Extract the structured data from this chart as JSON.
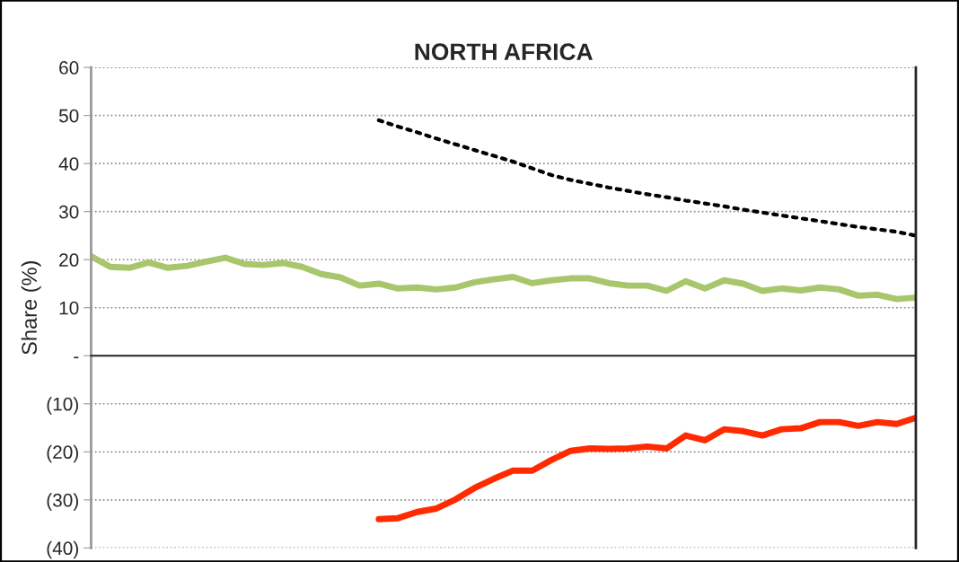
{
  "chart_data": {
    "type": "line",
    "title": "NORTH AFRICA",
    "ylabel": "Share (%)",
    "categories": [
      null,
      null,
      null,
      null,
      null,
      null,
      null,
      null,
      null,
      null,
      null,
      null,
      null,
      null,
      null,
      null,
      null,
      null,
      null,
      null,
      null,
      null,
      null,
      null,
      null,
      null,
      null,
      null,
      null,
      null,
      null,
      null,
      null,
      null,
      null,
      null,
      null,
      null,
      null,
      null,
      null,
      null,
      null,
      null
    ],
    "series": [
      {
        "color": "#a8c66c",
        "line_style": "solid",
        "values": [
          20.7,
          18.5,
          18.3,
          19.4,
          18.3,
          18.7,
          19.6,
          20.4,
          19.1,
          18.9,
          19.3,
          18.5,
          17.0,
          16.3,
          14.6,
          15.0,
          14.0,
          14.2,
          13.8,
          14.2,
          15.3,
          15.9,
          16.4,
          15.1,
          15.7,
          16.1,
          16.1,
          15.1,
          14.6,
          14.6,
          13.5,
          15.5,
          14.0,
          15.7,
          15.0,
          13.5,
          14.0,
          13.6,
          14.2,
          13.8,
          12.5,
          12.7,
          11.8,
          12.1
        ]
      },
      {
        "color": "#000000",
        "line_style": "dotted",
        "values": [
          null,
          null,
          null,
          null,
          null,
          null,
          null,
          null,
          null,
          null,
          null,
          null,
          null,
          null,
          null,
          49.0,
          47.7,
          46.5,
          45.2,
          44.0,
          42.8,
          41.6,
          40.4,
          39.0,
          37.6,
          36.6,
          35.8,
          35.0,
          34.3,
          33.6,
          33.0,
          32.3,
          31.7,
          31.1,
          30.4,
          29.8,
          29.2,
          28.6,
          28.0,
          27.4,
          26.8,
          26.3,
          25.8,
          25.0
        ]
      },
      {
        "color": "#ff2a00",
        "line_style": "solid",
        "values": [
          null,
          null,
          null,
          null,
          null,
          null,
          null,
          null,
          null,
          null,
          null,
          null,
          null,
          null,
          null,
          -34.0,
          -33.8,
          -32.5,
          -31.8,
          -29.9,
          -27.5,
          -25.6,
          -23.9,
          -23.9,
          -21.7,
          -19.8,
          -19.3,
          -19.4,
          -19.3,
          -18.9,
          -19.3,
          -16.6,
          -17.6,
          -15.3,
          -15.7,
          -16.6,
          -15.3,
          -15.1,
          -13.8,
          -13.8,
          -14.6,
          -13.8,
          -14.2,
          -12.9
        ]
      }
    ],
    "ylim": [
      -40,
      60
    ],
    "yticks": [
      {
        "value": -40,
        "label": "(40)"
      },
      {
        "value": -30,
        "label": "(30)"
      },
      {
        "value": -20,
        "label": "(20)"
      },
      {
        "value": -10,
        "label": "(10)"
      },
      {
        "value": 0,
        "label": "-"
      },
      10,
      20,
      30,
      40,
      50,
      60
    ],
    "grid": "y",
    "marker": "none",
    "legend": false
  }
}
